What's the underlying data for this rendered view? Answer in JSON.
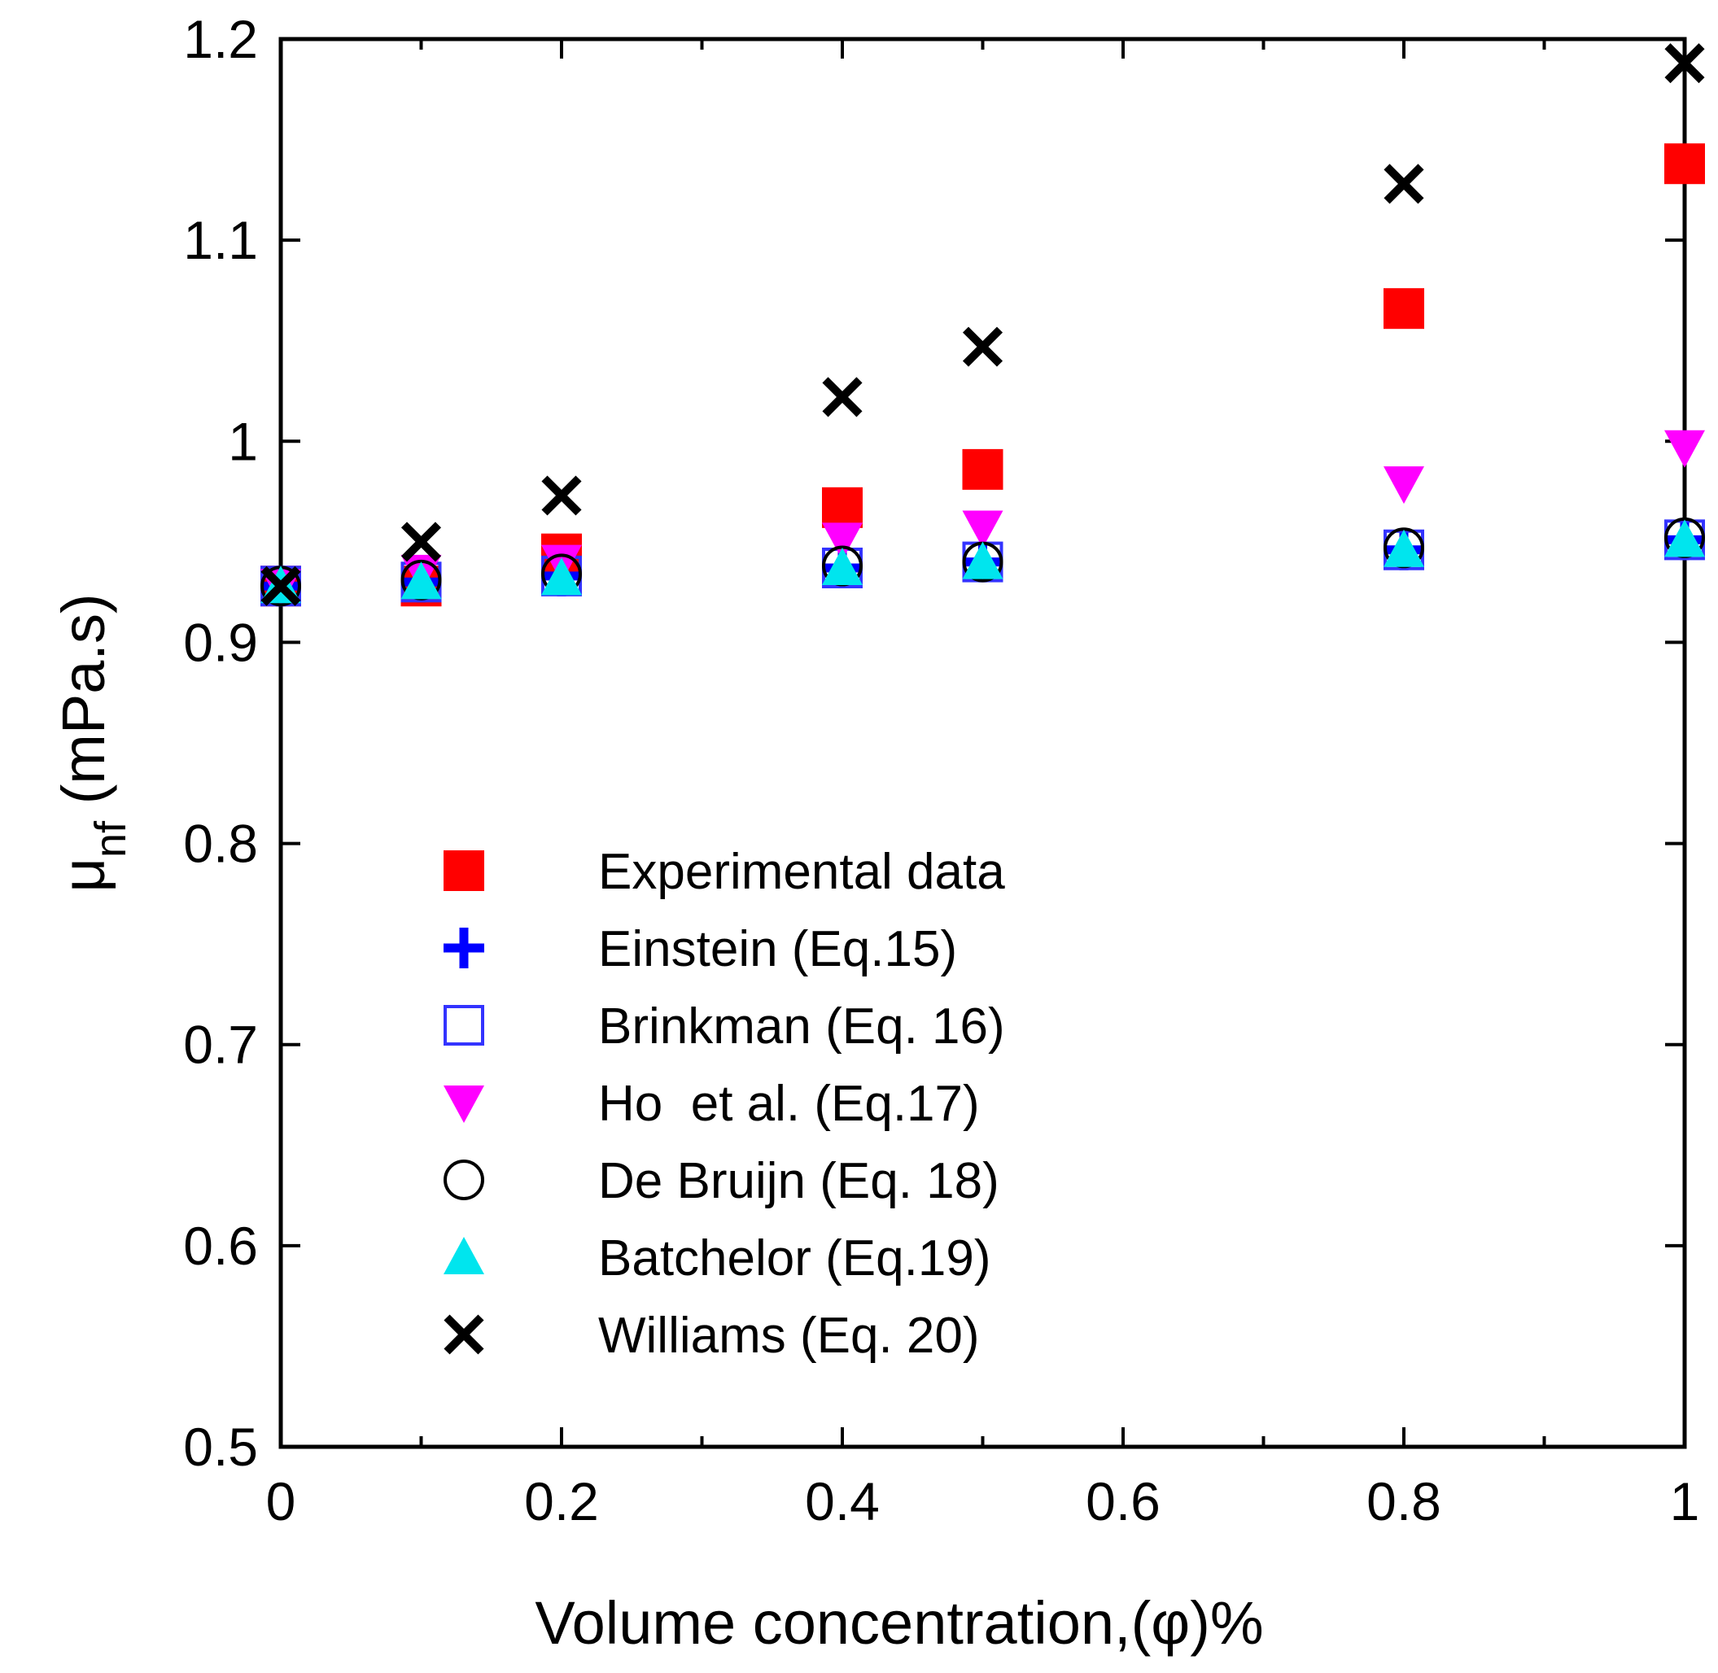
{
  "chart_data": {
    "type": "scatter",
    "title": "",
    "xlabel": "Volume concentration,(φ)%",
    "ylabel_main": "μ",
    "ylabel_sub": "nf",
    "ylabel_unit": " (mPa.s)",
    "xlim": [
      0,
      1
    ],
    "ylim": [
      0.5,
      1.2
    ],
    "xticks": [
      0,
      0.2,
      0.4,
      0.6,
      0.8,
      1
    ],
    "xtick_labels": [
      "0",
      "0.2",
      "0.4",
      "0.6",
      "0.8",
      "1"
    ],
    "yticks": [
      0.5,
      0.6,
      0.7,
      0.8,
      0.9,
      1.0,
      1.1,
      1.2
    ],
    "ytick_labels": [
      "0.5",
      "0.6",
      "0.7",
      "0.8",
      "0.9",
      "1",
      "1.1",
      "1.2"
    ],
    "grid": false,
    "legend_position": "lower-left",
    "x": [
      0,
      0.1,
      0.2,
      0.4,
      0.5,
      0.8,
      1.0
    ],
    "series": [
      {
        "name": "Experimental data",
        "marker": "filled-square",
        "color": "#ff0000",
        "values": [
          0.928,
          0.928,
          0.944,
          0.967,
          0.986,
          1.066,
          1.138
        ]
      },
      {
        "name": "Einstein (Eq.15)",
        "marker": "plus",
        "color": "#0000ff",
        "values": [
          0.928,
          0.93,
          0.933,
          0.937,
          0.94,
          0.946,
          0.951
        ]
      },
      {
        "name": "Brinkman (Eq. 16)",
        "marker": "open-square",
        "color": "#3333ff",
        "values": [
          0.928,
          0.93,
          0.933,
          0.937,
          0.94,
          0.946,
          0.951
        ]
      },
      {
        "name": "Ho  et al. (Eq.17)",
        "marker": "triangle-down",
        "color": "#ff00ff",
        "values": [
          0.928,
          0.935,
          0.94,
          0.951,
          0.957,
          0.979,
          0.997
        ]
      },
      {
        "name": "De Bruijn (Eq. 18)",
        "marker": "open-circle",
        "color": "#000000",
        "values": [
          0.928,
          0.931,
          0.934,
          0.938,
          0.94,
          0.947,
          0.952
        ]
      },
      {
        "name": "Batchelor (Eq.19)",
        "marker": "triangle-up",
        "color": "#00e5ee",
        "values": [
          0.928,
          0.93,
          0.932,
          0.937,
          0.94,
          0.946,
          0.951
        ]
      },
      {
        "name": "Williams (Eq. 20)",
        "marker": "cross",
        "color": "#000000",
        "values": [
          0.928,
          0.95,
          0.973,
          1.022,
          1.047,
          1.128,
          1.188
        ]
      }
    ]
  }
}
